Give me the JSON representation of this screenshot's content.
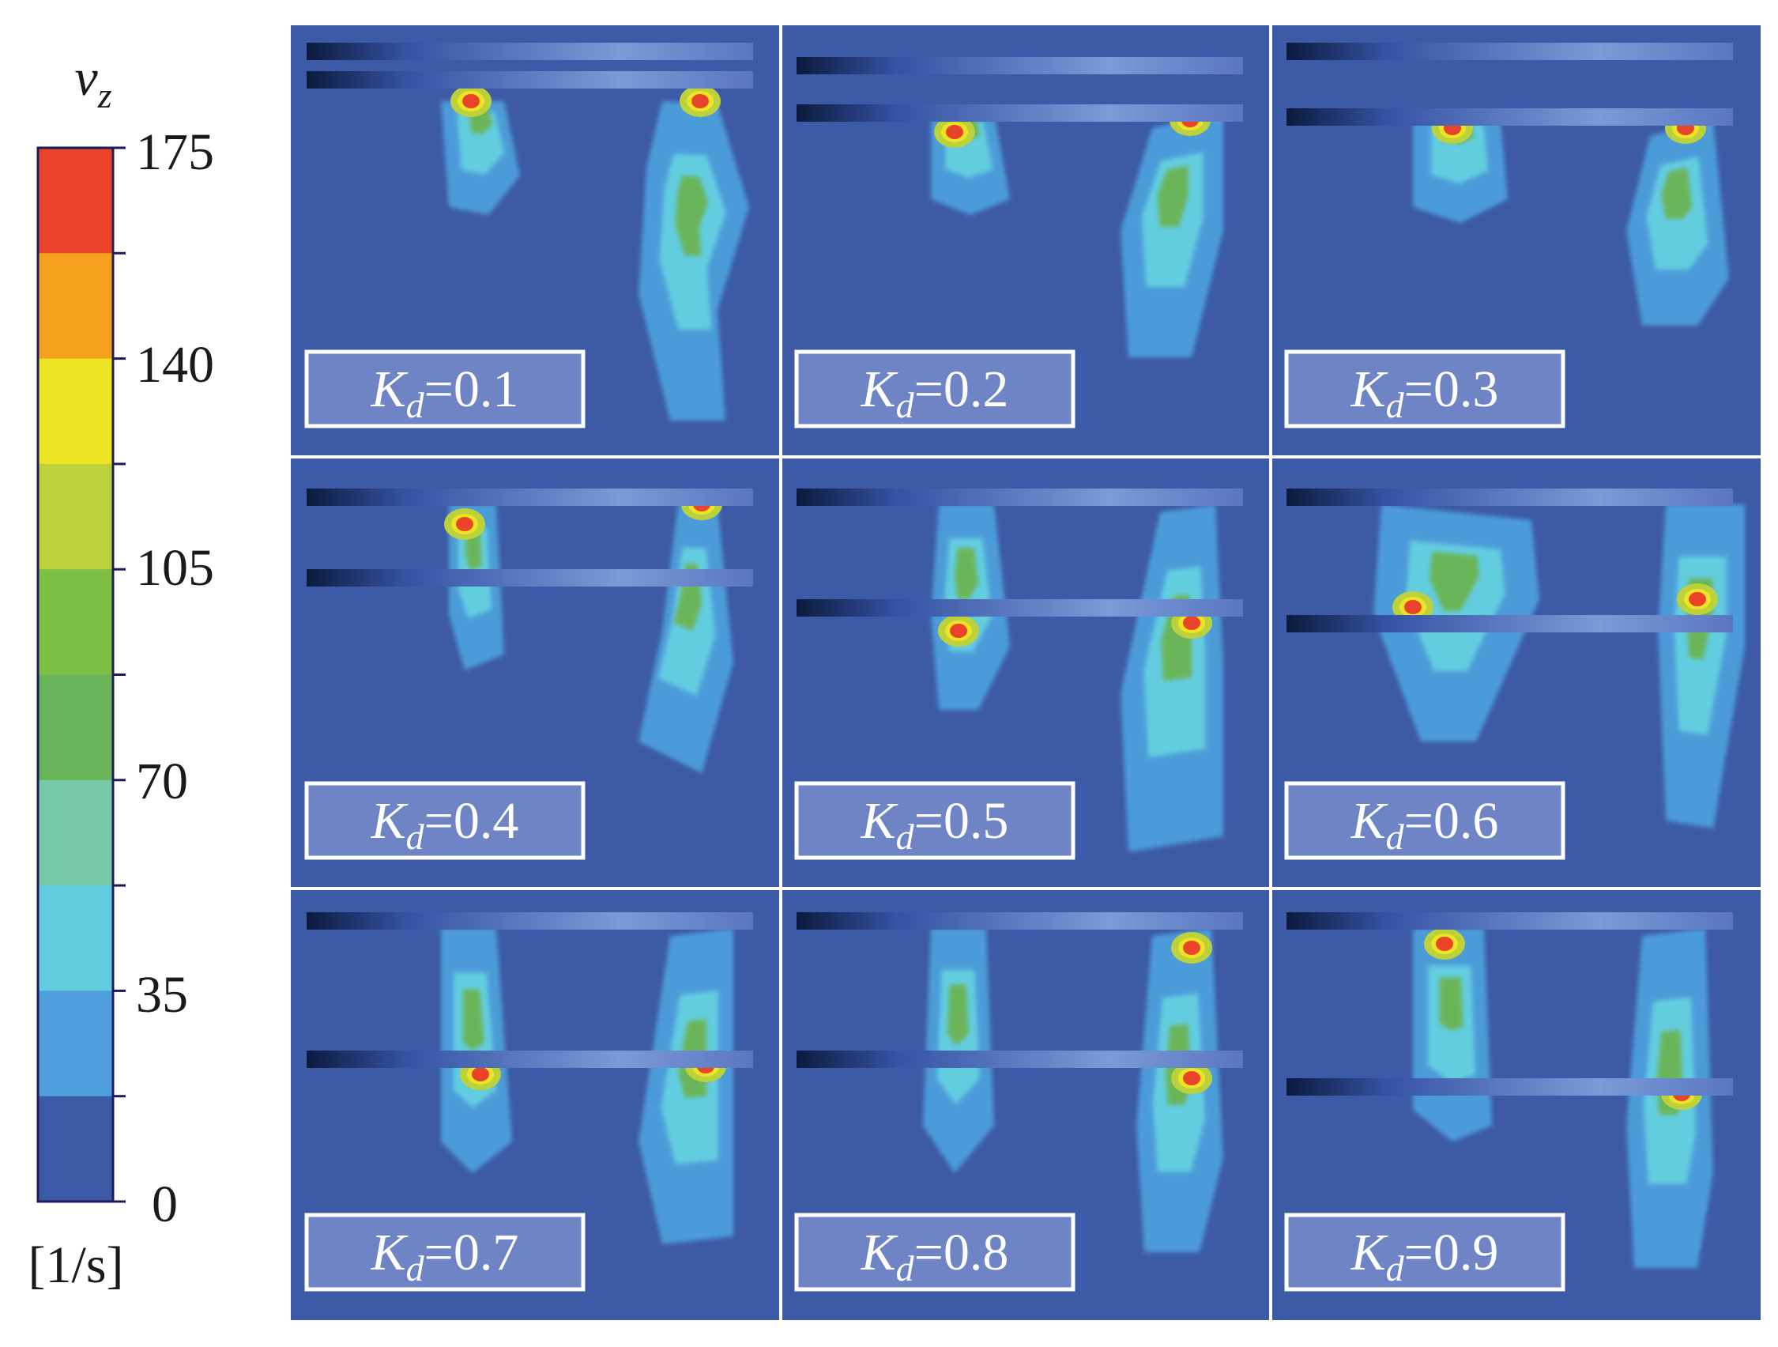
{
  "colorbar": {
    "variable_symbol": "v",
    "variable_subscript": "z",
    "unit_label": "[1/s]",
    "tick_labels": [
      "175",
      "140",
      "105",
      "70",
      "35",
      "0"
    ],
    "bands": [
      "#e9432a",
      "#f5a11d",
      "#ede524",
      "#bdd13c",
      "#7dbf45",
      "#6ab55a",
      "#77c8a6",
      "#63cde0",
      "#4e9fdc",
      "#3d5aa6"
    ],
    "range": [
      0,
      175
    ]
  },
  "colors": {
    "field_background": "#3d5aa6",
    "panel_divider": "#ffffff",
    "label_fill": "#6e84c4",
    "label_border": "#ffffff"
  },
  "panels": [
    {
      "symbol": "K",
      "subscript": "d",
      "value": "=0.1"
    },
    {
      "symbol": "K",
      "subscript": "d",
      "value": "=0.2"
    },
    {
      "symbol": "K",
      "subscript": "d",
      "value": "=0.3"
    },
    {
      "symbol": "K",
      "subscript": "d",
      "value": "=0.4"
    },
    {
      "symbol": "K",
      "subscript": "d",
      "value": "=0.5"
    },
    {
      "symbol": "K",
      "subscript": "d",
      "value": "=0.6"
    },
    {
      "symbol": "K",
      "subscript": "d",
      "value": "=0.7"
    },
    {
      "symbol": "K",
      "subscript": "d",
      "value": "=0.8"
    },
    {
      "symbol": "K",
      "subscript": "d",
      "value": "=0.9"
    }
  ]
}
